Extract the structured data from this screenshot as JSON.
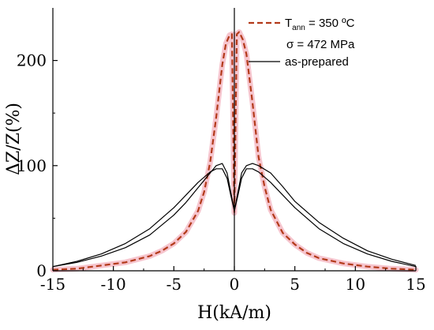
{
  "chart_data": {
    "type": "line",
    "xlabel": "H(kA/m)",
    "ylabel": "ΔZ/Z(%)",
    "xlim": [
      -15,
      15
    ],
    "ylim": [
      0,
      250
    ],
    "xticks": [
      -15,
      -10,
      -5,
      0,
      5,
      10,
      15
    ],
    "yticks": [
      0,
      100,
      200
    ],
    "x_tick_labels": [
      "-15",
      "-10",
      "-5",
      "0",
      "5",
      "10",
      "15"
    ],
    "y_tick_labels": [
      "0",
      "100",
      "200"
    ],
    "legend": {
      "position": "top-right",
      "entries": [
        {
          "text": "T",
          "subscript": "ann",
          "suffix": " = 350 ºC",
          "line": "dashed",
          "color": "#b33a1a"
        },
        {
          "text": "σ = 472 MPa",
          "line": "none"
        },
        {
          "text": "as-prepared",
          "line": "solid",
          "color": "#000000"
        }
      ]
    },
    "series": [
      {
        "name": "T_ann = 350 ºC",
        "style": "dashed",
        "color": "#b33a1a",
        "halo_color": "#f4b6c2",
        "x": [
          -15,
          -13,
          -11,
          -9,
          -7,
          -6,
          -5,
          -4,
          -3,
          -2.5,
          -2,
          -1.5,
          -1,
          -0.7,
          -0.4,
          -0.2,
          0,
          0.2,
          0.4,
          0.7,
          1,
          1.5,
          2,
          2.5,
          3,
          4,
          5,
          6,
          7,
          9,
          11,
          13,
          15
        ],
        "values": [
          1,
          2,
          5,
          8,
          14,
          19,
          26,
          37,
          57,
          75,
          103,
          146,
          196,
          216,
          224,
          225,
          55,
          225,
          227,
          220,
          206,
          160,
          108,
          80,
          58,
          36,
          25,
          17,
          12,
          7,
          4,
          2,
          1
        ]
      },
      {
        "name": "as-prepared (branch 1)",
        "style": "solid",
        "color": "#000000",
        "x": [
          -15,
          -13,
          -11,
          -9,
          -7,
          -5,
          -4,
          -3,
          -2,
          -1.5,
          -1,
          -0.6,
          -0.3,
          0,
          0.3,
          0.6,
          1,
          1.5,
          2,
          3,
          4,
          5,
          7,
          9,
          11,
          13,
          15
        ],
        "values": [
          4,
          8,
          14,
          22,
          34,
          53,
          65,
          79,
          93,
          100,
          102,
          93,
          75,
          57,
          72,
          88,
          97,
          97,
          94,
          84,
          72,
          60,
          40,
          26,
          16,
          9,
          4
        ]
      },
      {
        "name": "as-prepared (branch 2)",
        "style": "solid",
        "color": "#000000",
        "x": [
          -15,
          -13,
          -11,
          -9,
          -7,
          -5,
          -4,
          -3,
          -2,
          -1.5,
          -1,
          -0.6,
          -0.3,
          0,
          0.3,
          0.6,
          1,
          1.5,
          2,
          3,
          4,
          5,
          7,
          9,
          11,
          13,
          15
        ],
        "values": [
          4,
          9,
          16,
          26,
          40,
          60,
          72,
          84,
          94,
          97,
          97,
          88,
          72,
          57,
          75,
          93,
          100,
          102,
          100,
          93,
          80,
          66,
          46,
          31,
          19,
          11,
          5
        ]
      }
    ]
  }
}
